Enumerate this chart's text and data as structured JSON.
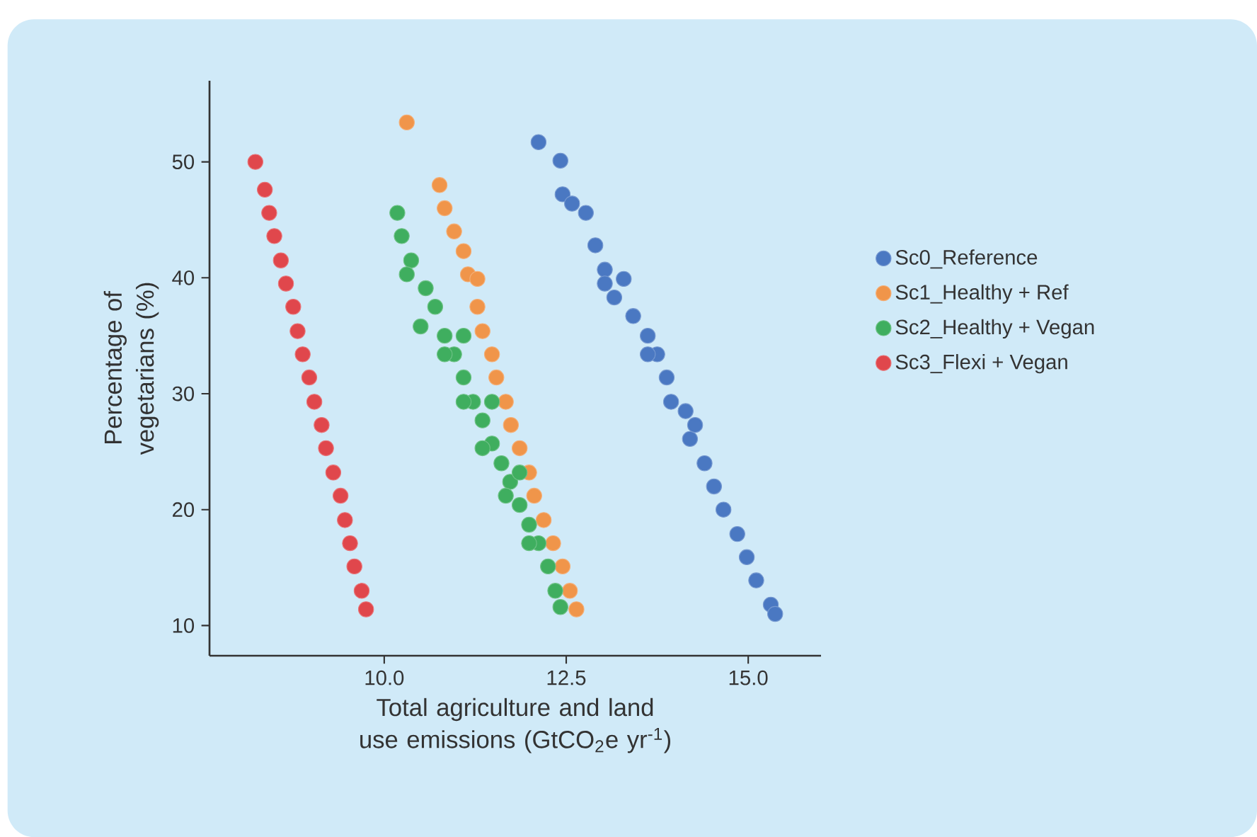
{
  "chart_data": {
    "type": "scatter",
    "xlabel": "Total agriculture and land use emissions (GtCO$_{2}$e yr$^{-1}$)",
    "ylabel": "Percentage of vegetarians (%)",
    "xlim": [
      7.6,
      16.0
    ],
    "ylim": [
      7.4,
      57
    ],
    "xticks": [
      {
        "value": 10,
        "label": "10.0"
      },
      {
        "value": 12.5,
        "label": "12.5"
      },
      {
        "value": 15,
        "label": "15.0"
      }
    ],
    "yticks": [
      10,
      20,
      30,
      40,
      50
    ],
    "legend": "right",
    "marker": "circle",
    "grid": false,
    "series": [
      {
        "name": "Sc0_Reference",
        "color": "#4a78c2",
        "x": [
          12.12,
          12.42,
          12.45,
          12.58,
          12.77,
          12.9,
          13.03,
          13.29,
          13.16,
          13.42,
          13.62,
          13.75,
          13.88,
          13.94,
          14.14,
          14.2,
          14.4,
          14.53,
          14.66,
          14.85,
          14.98,
          15.11,
          15.31,
          15.37,
          13.03,
          13.62,
          14.27
        ],
        "values": [
          51.7,
          50.1,
          47.2,
          46.4,
          45.6,
          42.8,
          40.7,
          39.9,
          38.3,
          36.7,
          35,
          33.4,
          31.4,
          29.3,
          28.5,
          26.1,
          24,
          22,
          20,
          17.9,
          15.9,
          13.9,
          11.8,
          11,
          39.5,
          33.4,
          27.3
        ]
      },
      {
        "name": "Sc1_Healthy + Ref",
        "color": "#f0954a",
        "x": [
          10.31,
          10.76,
          10.83,
          10.96,
          11.09,
          11.15,
          11.28,
          11.28,
          11.35,
          11.48,
          11.54,
          11.67,
          11.74,
          11.86,
          11.99,
          12.06,
          12.19,
          12.32,
          12.45,
          12.55,
          12.64
        ],
        "values": [
          53.4,
          48,
          46,
          44,
          42.3,
          40.3,
          39.9,
          37.5,
          35.4,
          33.4,
          31.4,
          29.3,
          27.3,
          25.3,
          23.2,
          21.2,
          19.1,
          17.1,
          15.1,
          13,
          11.4
        ]
      },
      {
        "name": "Sc2_Healthy + Vegan",
        "color": "#3fae5f",
        "x": [
          10.18,
          10.24,
          10.37,
          10.31,
          10.57,
          10.5,
          10.7,
          10.83,
          10.96,
          11.09,
          11.22,
          11.35,
          11.48,
          11.61,
          11.73,
          11.86,
          11.99,
          12.12,
          12.25,
          12.35,
          12.42,
          10.83,
          11.09,
          11.35,
          11.67,
          11.99,
          11.09,
          11.48,
          11.86
        ],
        "values": [
          45.6,
          43.6,
          41.5,
          40.3,
          39.1,
          35.8,
          37.5,
          35,
          33.4,
          31.4,
          29.3,
          27.7,
          25.7,
          24,
          22.4,
          20.4,
          18.7,
          17.1,
          15.1,
          13,
          11.6,
          33.4,
          29.3,
          25.3,
          21.2,
          17.1,
          35,
          29.3,
          23.2
        ]
      },
      {
        "name": "Sc3_Flexi + Vegan",
        "color": "#e0474c",
        "x": [
          8.23,
          8.36,
          8.42,
          8.49,
          8.58,
          8.65,
          8.75,
          8.81,
          8.88,
          8.97,
          9.04,
          9.14,
          9.2,
          9.3,
          9.4,
          9.46,
          9.53,
          9.59,
          9.69,
          9.75
        ],
        "values": [
          50,
          47.6,
          45.6,
          43.6,
          41.5,
          39.5,
          37.5,
          35.4,
          33.4,
          31.4,
          29.3,
          27.3,
          25.3,
          23.2,
          21.2,
          19.1,
          17.1,
          15.1,
          13,
          11.4
        ]
      }
    ]
  }
}
